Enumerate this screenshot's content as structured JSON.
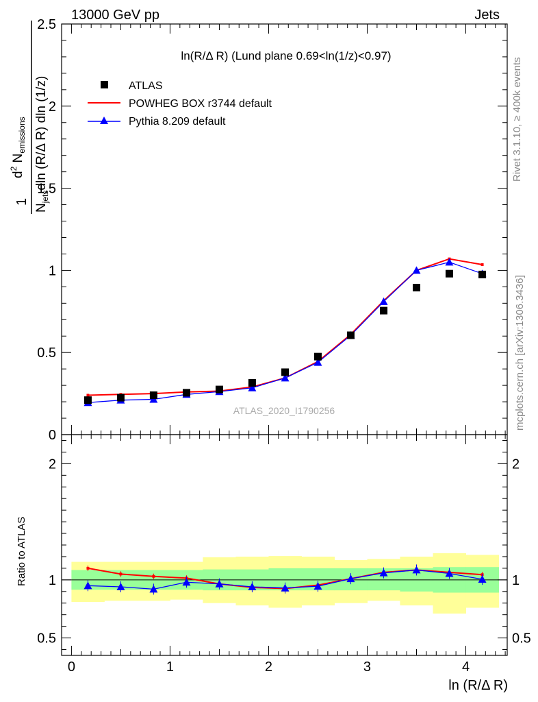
{
  "header": {
    "beam": "13000 GeV pp",
    "process": "Jets"
  },
  "side": {
    "rivet": "Rivet 3.1.10, ≥ 400k events",
    "mcplots": "mcplots.cern.ch [arXiv:1306.3436]"
  },
  "main_panel": {
    "title": "ln(R/Δ R) (Lund plane 0.69<ln(1/z)<0.97)",
    "ylabel": "1/N_jets d²N_emissions / dln(R/Δ R) dln(1/z)",
    "analysis": "ATLAS_2020_I1790256"
  },
  "ratio_panel": {
    "ylabel": "Ratio to ATLAS"
  },
  "xlabel": "ln (R/Δ R)",
  "legend": [
    {
      "label": "ATLAS",
      "color": "#000000",
      "marker": "square"
    },
    {
      "label": "POWHEG BOX r3744 default",
      "color": "#ff0000",
      "marker": "line"
    },
    {
      "label": "Pythia 8.209 default",
      "color": "#0000ff",
      "marker": "triangle"
    }
  ],
  "chart_data": [
    {
      "type": "scatter",
      "panel": "main",
      "title": "ln(R/Δ R) (Lund plane 0.69<ln(1/z)<0.97)",
      "xlabel": "ln (R/Δ R)",
      "ylabel": "1/N_jets d²N_emissions / dln(R/Δ R) dln(1/z)",
      "xlim": [
        -0.1,
        4.42
      ],
      "ylim": [
        0,
        2.5
      ],
      "yticks": [
        0,
        0.5,
        1,
        1.5,
        2,
        2.5
      ],
      "x": [
        0.167,
        0.5,
        0.833,
        1.167,
        1.5,
        1.833,
        2.167,
        2.5,
        2.833,
        3.167,
        3.5,
        3.833,
        4.167
      ],
      "series": [
        {
          "name": "ATLAS",
          "color": "#000000",
          "values": [
            0.21,
            0.225,
            0.24,
            0.255,
            0.275,
            0.315,
            0.38,
            0.475,
            0.605,
            0.755,
            0.895,
            0.98,
            0.975
          ]
        },
        {
          "name": "POWHEG BOX r3744 default",
          "color": "#ff0000",
          "values": [
            0.24,
            0.245,
            0.25,
            0.26,
            0.265,
            0.29,
            0.345,
            0.445,
            0.61,
            0.815,
            1.0,
            1.07,
            1.035
          ]
        },
        {
          "name": "Pythia 8.209 default",
          "color": "#0000ff",
          "values": [
            0.195,
            0.21,
            0.215,
            0.245,
            0.262,
            0.285,
            0.345,
            0.44,
            0.605,
            0.81,
            1.0,
            1.05,
            0.98
          ]
        }
      ]
    },
    {
      "type": "line",
      "panel": "ratio",
      "xlabel": "ln (R/Δ R)",
      "ylabel": "Ratio to ATLAS",
      "xlim": [
        -0.1,
        4.42
      ],
      "ylim": [
        0.35,
        2.25
      ],
      "yticks": [
        0.5,
        1,
        2
      ],
      "xticks": [
        0,
        1,
        2,
        3,
        4
      ],
      "bin_edges": [
        0,
        0.333,
        0.667,
        1.0,
        1.333,
        1.667,
        2.0,
        2.333,
        2.667,
        3.0,
        3.333,
        3.667,
        4.0,
        4.333
      ],
      "band_inner": {
        "color": "#99ff99",
        "lo": [
          0.915,
          0.915,
          0.915,
          0.915,
          0.91,
          0.91,
          0.91,
          0.91,
          0.91,
          0.91,
          0.9,
          0.89,
          0.89
        ],
        "hi": [
          1.085,
          1.085,
          1.085,
          1.085,
          1.09,
          1.09,
          1.1,
          1.1,
          1.1,
          1.1,
          1.1,
          1.11,
          1.11
        ]
      },
      "band_outer": {
        "color": "#ffff99",
        "lo": [
          0.81,
          0.82,
          0.82,
          0.83,
          0.8,
          0.78,
          0.76,
          0.78,
          0.8,
          0.82,
          0.78,
          0.71,
          0.76
        ],
        "hi": [
          1.155,
          1.155,
          1.155,
          1.155,
          1.195,
          1.2,
          1.205,
          1.2,
          1.17,
          1.18,
          1.2,
          1.23,
          1.215
        ]
      },
      "x": [
        0.167,
        0.5,
        0.833,
        1.167,
        1.5,
        1.833,
        2.167,
        2.5,
        2.833,
        3.167,
        3.5,
        3.833,
        4.167
      ],
      "series": [
        {
          "name": "POWHEG BOX r3744 default",
          "color": "#ff0000",
          "values": [
            1.1,
            1.05,
            1.03,
            1.015,
            0.965,
            0.935,
            0.925,
            0.955,
            1.01,
            1.065,
            1.085,
            1.065,
            1.045
          ]
        },
        {
          "name": "Pythia 8.209 default",
          "color": "#0000ff",
          "values": [
            0.95,
            0.94,
            0.92,
            0.98,
            0.965,
            0.94,
            0.93,
            0.945,
            1.01,
            1.06,
            1.085,
            1.055,
            1.005
          ]
        }
      ]
    }
  ]
}
